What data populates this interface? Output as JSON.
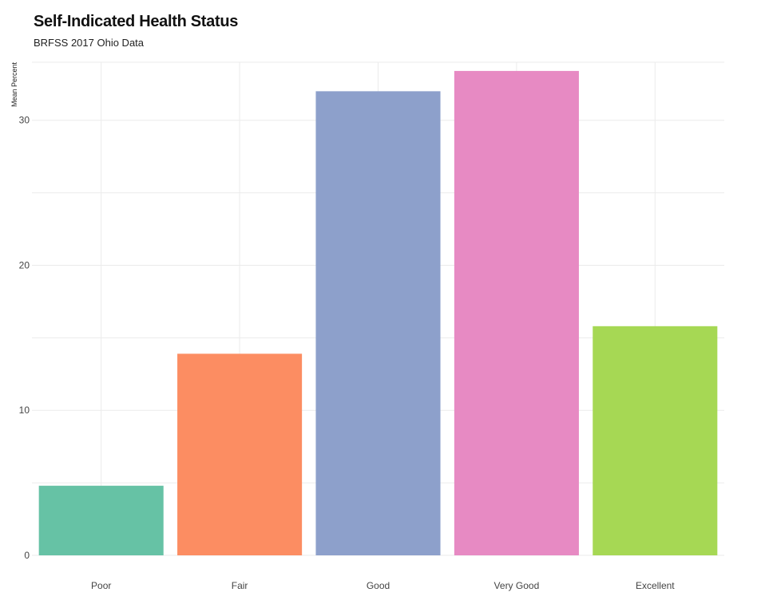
{
  "chart_data": {
    "type": "bar",
    "title": "Self-Indicated Health Status",
    "subtitle": "BRFSS 2017 Ohio Data",
    "xlabel": "",
    "ylabel": "Mean Percent",
    "categories": [
      "Poor",
      "Fair",
      "Good",
      "Very Good",
      "Excellent"
    ],
    "values": [
      4.8,
      13.9,
      32.0,
      33.4,
      15.8
    ],
    "colors": [
      "#66c2a5",
      "#fc8d62",
      "#8da0cb",
      "#e78ac3",
      "#a6d854"
    ],
    "ylim": [
      0,
      34
    ],
    "yticks": [
      0,
      10,
      20,
      30
    ],
    "grid": true,
    "legend": "none"
  }
}
